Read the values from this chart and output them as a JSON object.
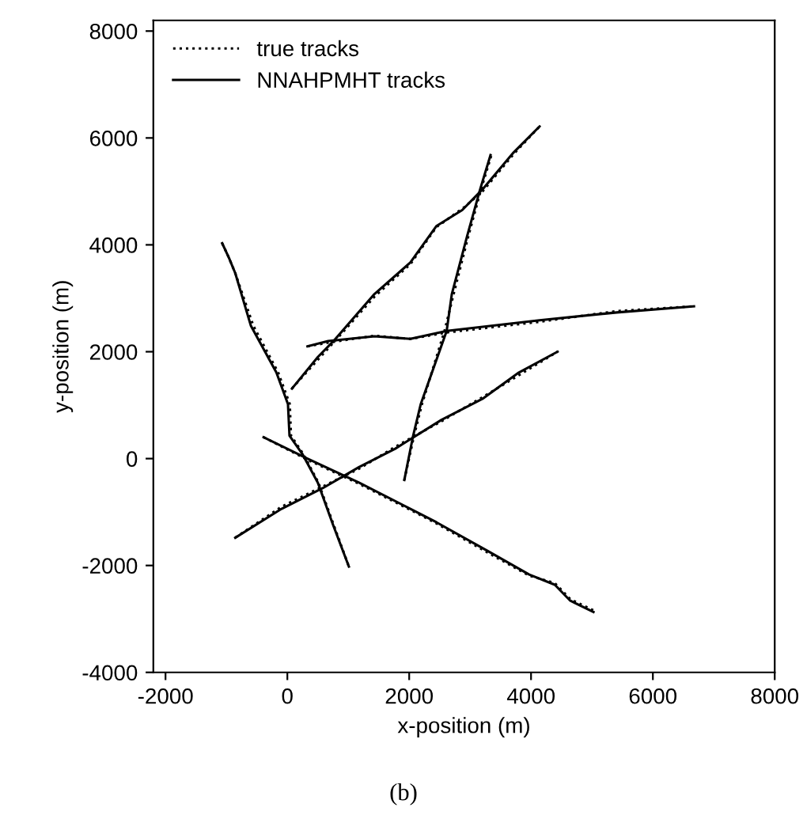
{
  "chart_data": {
    "type": "line",
    "xlabel": "x-position (m)",
    "ylabel": "y-position (m)",
    "annotations": [
      "(b)"
    ],
    "xlim": [
      -2200,
      8000
    ],
    "ylim": [
      -4000,
      8200
    ],
    "xticks": [
      -2000,
      0,
      2000,
      4000,
      6000,
      8000
    ],
    "yticks": [
      -4000,
      -2000,
      0,
      2000,
      4000,
      6000,
      8000
    ],
    "grid": false,
    "legend": "top left",
    "marker": "none",
    "series": [
      {
        "name": "true tracks",
        "color": "#000000",
        "line_style": "dotted",
        "x": [
          -1070,
          -960,
          -855,
          -560,
          -150,
          40,
          60,
          260,
          510,
          760,
          1010
        ],
        "values": [
          4030,
          3760,
          3470,
          2490,
          1610,
          1020,
          430,
          90,
          -450,
          -1240,
          -2020
        ]
      },
      {
        "color": "#000000",
        "line_style": "dotted",
        "x": [
          -855,
          -95,
          585,
          1175,
          1770,
          2530,
          3205,
          3800,
          4435
        ],
        "values": [
          -1480,
          -900,
          -520,
          -190,
          220,
          700,
          1150,
          1560,
          2000
        ]
      },
      {
        "color": "#000000",
        "line_style": "dotted",
        "x": [
          1920,
          2080,
          2210,
          2580,
          2730,
          2970,
          3180,
          3350
        ],
        "values": [
          -400,
          430,
          1020,
          2390,
          3080,
          4160,
          5040,
          5680
        ]
      },
      {
        "color": "#000000",
        "line_style": "dotted",
        "x": [
          75,
          500,
          750,
          1430,
          2020,
          2445,
          2900,
          3205,
          3715,
          4140
        ],
        "values": [
          1310,
          1850,
          2160,
          3030,
          3640,
          4330,
          4700,
          5000,
          5700,
          6215
        ]
      },
      {
        "color": "#000000",
        "line_style": "dotted",
        "x": [
          330,
          670,
          1430,
          2020,
          2615,
          4140,
          5405,
          6675
        ],
        "values": [
          2100,
          2170,
          2300,
          2240,
          2360,
          2560,
          2760,
          2850
        ]
      },
      {
        "color": "#000000",
        "line_style": "dotted",
        "x": [
          -390,
          330,
          1175,
          2020,
          2445,
          3290,
          3970,
          4390,
          4645,
          5025
        ],
        "values": [
          400,
          -20,
          -470,
          -960,
          -1210,
          -1760,
          -2190,
          -2330,
          -2630,
          -2840
        ]
      },
      {
        "name": "NNAHPMHT tracks",
        "color": "#000000",
        "line_style": "solid",
        "x": [
          -1070,
          -960,
          -855,
          -600,
          -180,
          10,
          35,
          245,
          500,
          750,
          1010
        ],
        "values": [
          4030,
          3760,
          3470,
          2490,
          1610,
          1020,
          430,
          90,
          -450,
          -1240,
          -2020
        ]
      },
      {
        "color": "#000000",
        "line_style": "solid",
        "x": [
          -855,
          -95,
          585,
          1175,
          1770,
          2530,
          3205,
          3800,
          4435
        ],
        "values": [
          -1480,
          -940,
          -550,
          -160,
          185,
          725,
          1120,
          1610,
          2000
        ]
      },
      {
        "color": "#000000",
        "line_style": "solid",
        "x": [
          1920,
          2065,
          2190,
          2615,
          2700,
          2950,
          3165,
          3335
        ],
        "values": [
          -400,
          430,
          1020,
          2390,
          3080,
          4160,
          5040,
          5680
        ]
      },
      {
        "color": "#000000",
        "line_style": "solid",
        "x": [
          75,
          500,
          750,
          1430,
          2020,
          2445,
          2870,
          3205,
          3715,
          4140
        ],
        "values": [
          1310,
          1900,
          2190,
          3080,
          3670,
          4350,
          4650,
          5040,
          5730,
          6215
        ]
      },
      {
        "color": "#000000",
        "line_style": "solid",
        "x": [
          330,
          670,
          1430,
          2020,
          2615,
          4140,
          5405,
          6675
        ],
        "values": [
          2100,
          2200,
          2290,
          2240,
          2390,
          2590,
          2735,
          2850
        ]
      },
      {
        "color": "#000000",
        "line_style": "solid",
        "x": [
          -390,
          330,
          1175,
          2020,
          2445,
          3290,
          3970,
          4390,
          4645,
          5025
        ],
        "values": [
          400,
          0,
          -450,
          -940,
          -1190,
          -1730,
          -2170,
          -2360,
          -2660,
          -2870
        ]
      }
    ]
  }
}
